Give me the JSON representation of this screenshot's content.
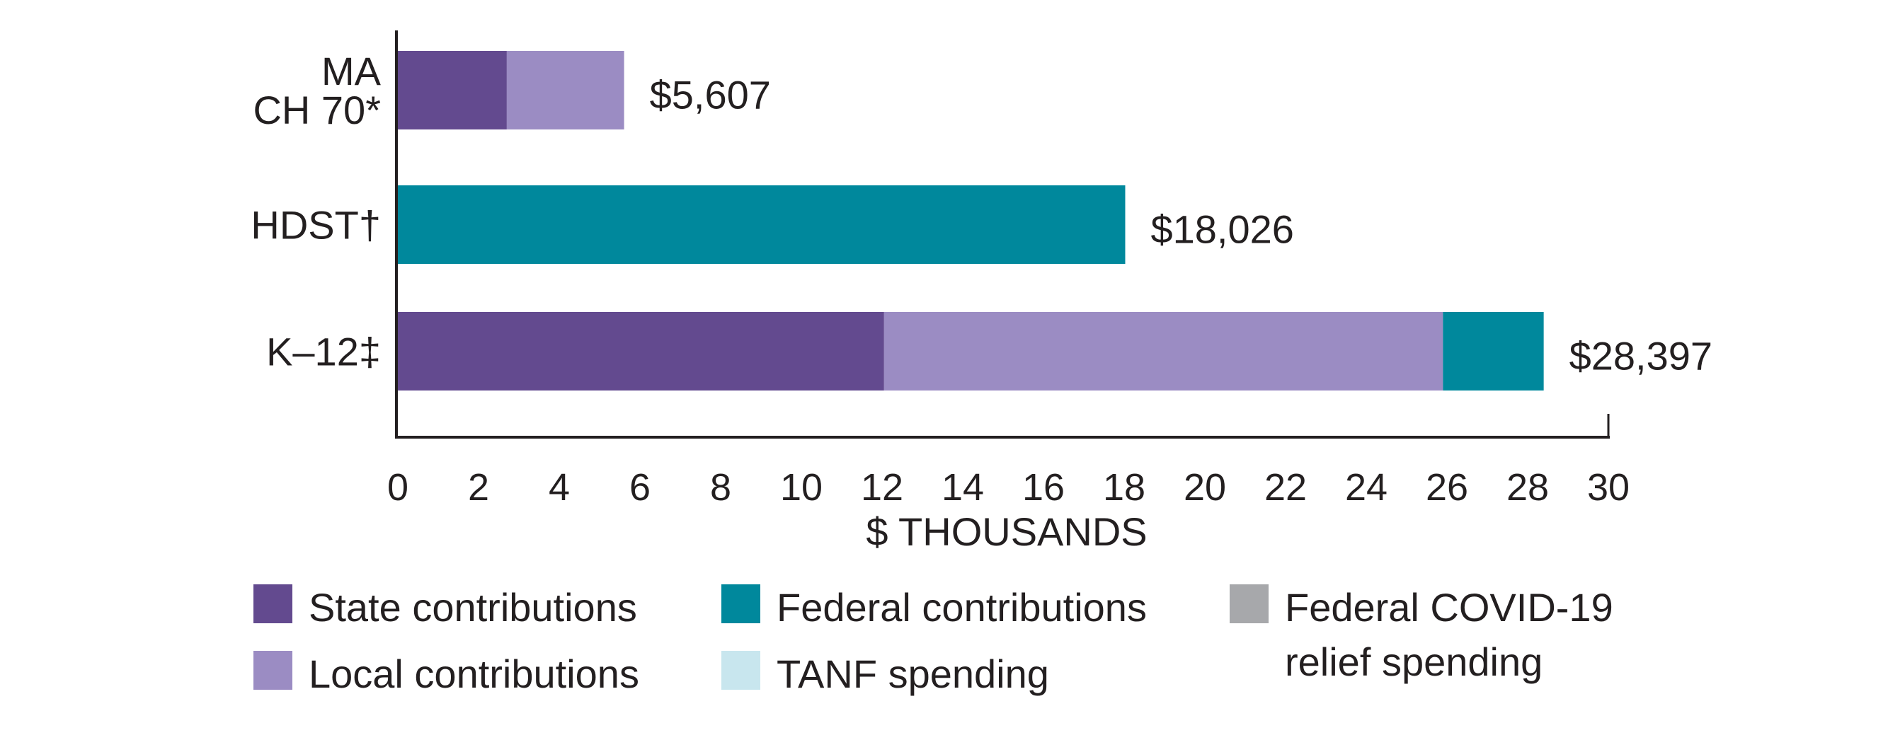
{
  "chart_data": {
    "type": "bar",
    "orientation": "horizontal",
    "stacked": true,
    "title": "",
    "xlabel": "$ THOUSANDS",
    "ylabel": "",
    "xlim": [
      0,
      30
    ],
    "xticks": [
      0,
      2,
      4,
      6,
      8,
      10,
      12,
      14,
      16,
      18,
      20,
      22,
      24,
      26,
      28,
      30
    ],
    "xtick_labels": [
      "0",
      "2",
      "4",
      "6",
      "8",
      "10",
      "12",
      "14",
      "16",
      "18",
      "20",
      "22",
      "24",
      "26",
      "28",
      "30"
    ],
    "grid": false,
    "categories": [
      {
        "lines": [
          "MA",
          "CH 70*"
        ]
      },
      {
        "lines": [
          "HDST†"
        ]
      },
      {
        "lines": [
          "K–12‡"
        ]
      }
    ],
    "category_names": [
      "MA CH 70*",
      "HDST†",
      "K–12‡"
    ],
    "series": [
      {
        "name": "State contributions",
        "color": "#634a8f",
        "values": [
          2.7,
          0,
          12.05
        ]
      },
      {
        "name": "Local contributions",
        "color": "#9b8cc3",
        "values": [
          2.907,
          0,
          13.85
        ]
      },
      {
        "name": "Federal contributions",
        "color": "#00889c",
        "values": [
          0,
          18.026,
          2.497
        ]
      },
      {
        "name": "TANF spending",
        "color": "#c8e6ee",
        "values": [
          0,
          0,
          0
        ]
      },
      {
        "name": "Federal COVID-19 relief spending",
        "color": "#a7a8ab",
        "values": [
          0,
          0,
          0
        ]
      }
    ],
    "totals": [
      5.607,
      18.026,
      28.397
    ],
    "total_labels": [
      "$5,607",
      "$18,026",
      "$28,397"
    ],
    "legend": {
      "position": "bottom",
      "items": [
        {
          "lines": [
            "State contributions"
          ],
          "color": "#634a8f",
          "col": 0,
          "row": 0
        },
        {
          "lines": [
            "Local contributions"
          ],
          "color": "#9b8cc3",
          "col": 0,
          "row": 1
        },
        {
          "lines": [
            "Federal contributions"
          ],
          "color": "#00889c",
          "col": 1,
          "row": 0
        },
        {
          "lines": [
            "TANF spending"
          ],
          "color": "#c8e6ee",
          "col": 1,
          "row": 1
        },
        {
          "lines": [
            "Federal COVID-19",
            "relief spending"
          ],
          "color": "#a7a8ab",
          "col": 2,
          "row": 0
        }
      ]
    }
  }
}
